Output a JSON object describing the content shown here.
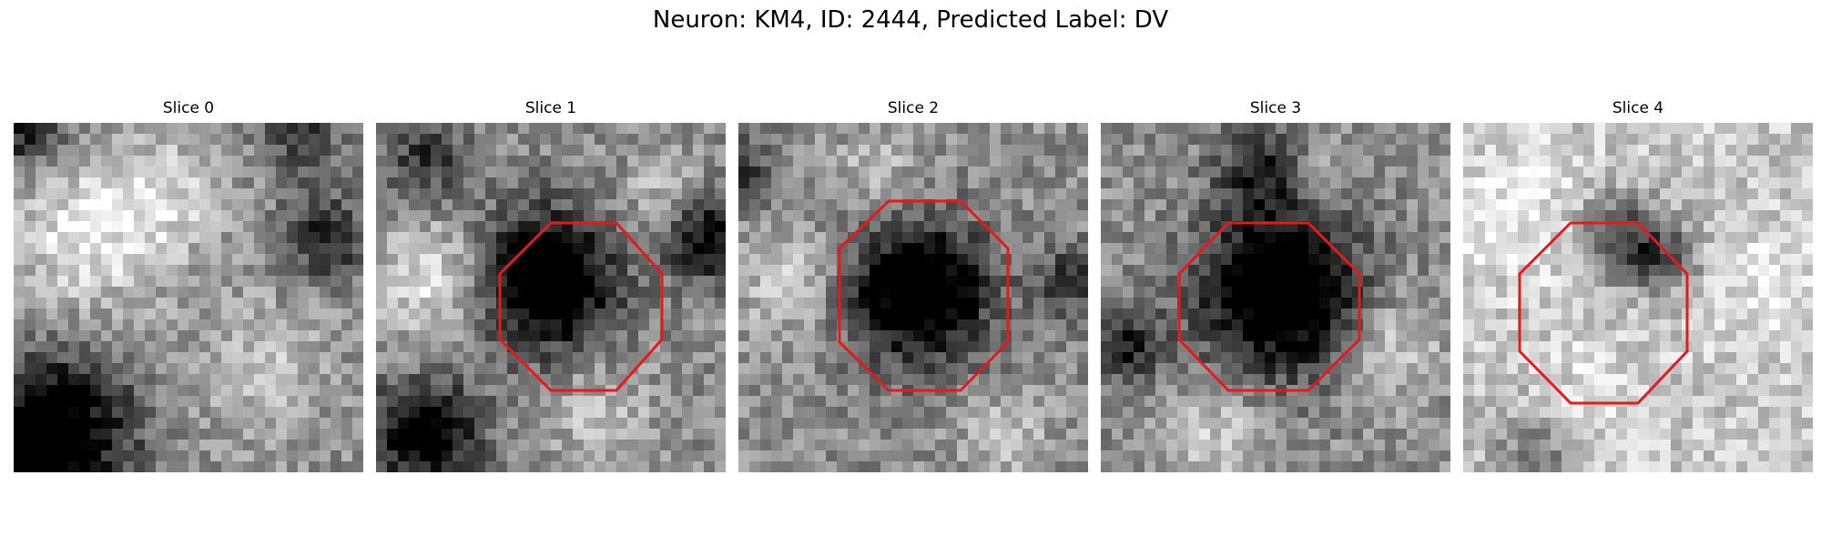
{
  "suptitle": "Neuron: KM4, ID: 2444, Predicted Label: DV",
  "colors": {
    "background": "#ffffff",
    "roi_outline": "#e41a1c",
    "colormap": "gray"
  },
  "panels": [
    {
      "title": "Slice 0",
      "has_roi": false
    },
    {
      "title": "Slice 1",
      "has_roi": true
    },
    {
      "title": "Slice 2",
      "has_roi": true
    },
    {
      "title": "Slice 3",
      "has_roi": true
    },
    {
      "title": "Slice 4",
      "has_roi": true
    }
  ]
}
